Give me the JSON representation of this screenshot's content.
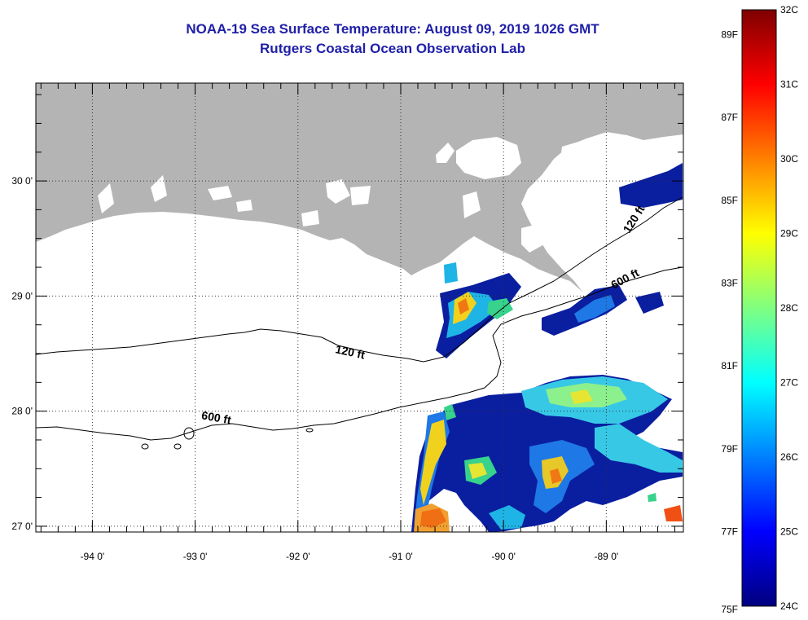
{
  "title": {
    "line1": "NOAA-19 Sea Surface Temperature:  August 09, 2019 1026 GMT",
    "line2": "Rutgers Coastal Ocean Observation Lab"
  },
  "map": {
    "lon_range": [
      -94.55,
      -88.25
    ],
    "lat_range": [
      26.95,
      30.85
    ],
    "lon_ticks": [
      {
        "value": -94,
        "label": "-94 0'"
      },
      {
        "value": -93,
        "label": "-93 0'"
      },
      {
        "value": -92,
        "label": "-92 0'"
      },
      {
        "value": -91,
        "label": "-91 0'"
      },
      {
        "value": -90,
        "label": "-90 0'"
      },
      {
        "value": -89,
        "label": "-89 0'"
      }
    ],
    "lat_ticks": [
      {
        "value": 30,
        "label": "30 0'"
      },
      {
        "value": 29,
        "label": "29 0'"
      },
      {
        "value": 28,
        "label": "28 0'"
      },
      {
        "value": 27,
        "label": "27 0'"
      }
    ],
    "grid_style": "dotted",
    "colors": {
      "land": "#b4b4b4",
      "cloud_mask": "#ffffff",
      "frame": "#000000"
    },
    "contours": [
      {
        "label": "120 ft",
        "label_lon": -91.5,
        "label_lat": 28.48
      },
      {
        "label": "600 ft",
        "label_lon": -92.8,
        "label_lat": 27.91
      },
      {
        "label": "120 ft",
        "label_lon": -88.7,
        "label_lat": 29.65
      },
      {
        "label": "600 ft",
        "label_lon": -88.8,
        "label_lat": 29.12
      }
    ]
  },
  "colorbar": {
    "min_c": 24,
    "max_c": 32,
    "stops": [
      "#00007f",
      "#0000ff",
      "#0080ff",
      "#00ffff",
      "#80ff80",
      "#ffff00",
      "#ff8000",
      "#ff0000",
      "#7f0000"
    ],
    "celsius_labels": [
      {
        "value": 32,
        "label": "32C"
      },
      {
        "value": 31,
        "label": "31C"
      },
      {
        "value": 30,
        "label": "30C"
      },
      {
        "value": 29,
        "label": "29C"
      },
      {
        "value": 28,
        "label": "28C"
      },
      {
        "value": 27,
        "label": "27C"
      },
      {
        "value": 26,
        "label": "26C"
      },
      {
        "value": 25,
        "label": "25C"
      },
      {
        "value": 24,
        "label": "24C"
      }
    ],
    "fahrenheit_labels": [
      {
        "value": 89,
        "label": "89F"
      },
      {
        "value": 87,
        "label": "87F"
      },
      {
        "value": 85,
        "label": "85F"
      },
      {
        "value": 83,
        "label": "83F"
      },
      {
        "value": 81,
        "label": "81F"
      },
      {
        "value": 79,
        "label": "79F"
      },
      {
        "value": 77,
        "label": "77F"
      },
      {
        "value": 75,
        "label": "75F"
      }
    ]
  }
}
